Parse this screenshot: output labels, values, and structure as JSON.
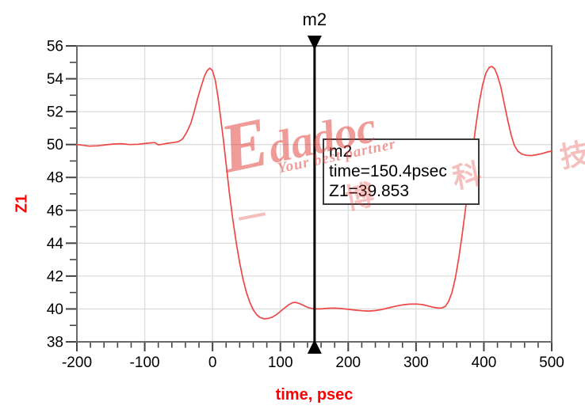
{
  "watermark": {
    "brand": "Edadoc",
    "tagline": "Your best partner",
    "cjk": "一 博 科 技",
    "color": "#e2403c"
  },
  "marker": {
    "name": "m2",
    "time_psec": 150.4,
    "z1": 39.853,
    "info_lines": [
      "m2",
      "time=150.4psec",
      "Z1=39.853"
    ]
  },
  "chart_data": {
    "type": "line",
    "title": "",
    "xlabel": "time, psec",
    "ylabel": "Z1",
    "xlim": [
      -200,
      500
    ],
    "ylim": [
      38,
      56
    ],
    "x_major_step": 100,
    "x_minor_step": 20,
    "y_major_step": 2,
    "y_minor_step": 1,
    "grid": true,
    "colors": {
      "trace": "#ee4747",
      "grid": "#dcdcdc",
      "border": "#6a6a6a",
      "tick": "#444444",
      "tick_label": "#000000",
      "axis_title": "#ff0000",
      "marker": "#000000"
    },
    "marker": {
      "name": "m2",
      "time": 150.4,
      "value": 39.853
    },
    "series": [
      {
        "name": "Z1",
        "points": [
          [
            -200,
            50.0
          ],
          [
            -190,
            49.95
          ],
          [
            -182,
            49.9
          ],
          [
            -170,
            49.92
          ],
          [
            -158,
            49.98
          ],
          [
            -146,
            50.03
          ],
          [
            -134,
            50.05
          ],
          [
            -122,
            50.0
          ],
          [
            -110,
            50.02
          ],
          [
            -100,
            50.06
          ],
          [
            -92,
            50.1
          ],
          [
            -85,
            50.12
          ],
          [
            -80,
            49.98
          ],
          [
            -74,
            50.02
          ],
          [
            -66,
            50.08
          ],
          [
            -58,
            50.12
          ],
          [
            -50,
            50.18
          ],
          [
            -44,
            50.35
          ],
          [
            -38,
            50.75
          ],
          [
            -32,
            51.3
          ],
          [
            -27,
            52.0
          ],
          [
            -22,
            52.8
          ],
          [
            -17,
            53.5
          ],
          [
            -12,
            54.15
          ],
          [
            -8,
            54.5
          ],
          [
            -4,
            54.65
          ],
          [
            0,
            54.5
          ],
          [
            4,
            53.9
          ],
          [
            8,
            52.9
          ],
          [
            12,
            51.6
          ],
          [
            16,
            50.3
          ],
          [
            20,
            48.8
          ],
          [
            25,
            47.0
          ],
          [
            30,
            45.4
          ],
          [
            35,
            44.0
          ],
          [
            40,
            42.8
          ],
          [
            45,
            41.8
          ],
          [
            50,
            41.0
          ],
          [
            55,
            40.4
          ],
          [
            60,
            39.95
          ],
          [
            65,
            39.65
          ],
          [
            70,
            39.48
          ],
          [
            76,
            39.4
          ],
          [
            82,
            39.42
          ],
          [
            88,
            39.5
          ],
          [
            94,
            39.65
          ],
          [
            100,
            39.85
          ],
          [
            106,
            40.05
          ],
          [
            112,
            40.25
          ],
          [
            118,
            40.38
          ],
          [
            122,
            40.4
          ],
          [
            128,
            40.33
          ],
          [
            134,
            40.22
          ],
          [
            140,
            40.1
          ],
          [
            146,
            40.03
          ],
          [
            152,
            40.0
          ],
          [
            160,
            40.0
          ],
          [
            170,
            40.04
          ],
          [
            180,
            40.05
          ],
          [
            190,
            40.02
          ],
          [
            200,
            39.98
          ],
          [
            210,
            39.93
          ],
          [
            220,
            39.89
          ],
          [
            230,
            39.87
          ],
          [
            240,
            39.9
          ],
          [
            250,
            39.97
          ],
          [
            260,
            40.07
          ],
          [
            270,
            40.17
          ],
          [
            280,
            40.25
          ],
          [
            290,
            40.29
          ],
          [
            300,
            40.3
          ],
          [
            310,
            40.26
          ],
          [
            318,
            40.18
          ],
          [
            326,
            40.1
          ],
          [
            333,
            40.05
          ],
          [
            338,
            40.06
          ],
          [
            343,
            40.15
          ],
          [
            348,
            40.45
          ],
          [
            353,
            41.0
          ],
          [
            358,
            41.9
          ],
          [
            363,
            43.1
          ],
          [
            368,
            44.5
          ],
          [
            373,
            46.1
          ],
          [
            378,
            47.8
          ],
          [
            383,
            49.5
          ],
          [
            388,
            51.1
          ],
          [
            393,
            52.5
          ],
          [
            398,
            53.6
          ],
          [
            403,
            54.35
          ],
          [
            408,
            54.7
          ],
          [
            412,
            54.75
          ],
          [
            416,
            54.6
          ],
          [
            420,
            54.2
          ],
          [
            425,
            53.5
          ],
          [
            430,
            52.5
          ],
          [
            435,
            51.5
          ],
          [
            440,
            50.6
          ],
          [
            445,
            49.95
          ],
          [
            450,
            49.6
          ],
          [
            456,
            49.42
          ],
          [
            462,
            49.35
          ],
          [
            470,
            49.33
          ],
          [
            478,
            49.38
          ],
          [
            486,
            49.45
          ],
          [
            494,
            49.55
          ],
          [
            500,
            49.6
          ]
        ]
      }
    ]
  }
}
